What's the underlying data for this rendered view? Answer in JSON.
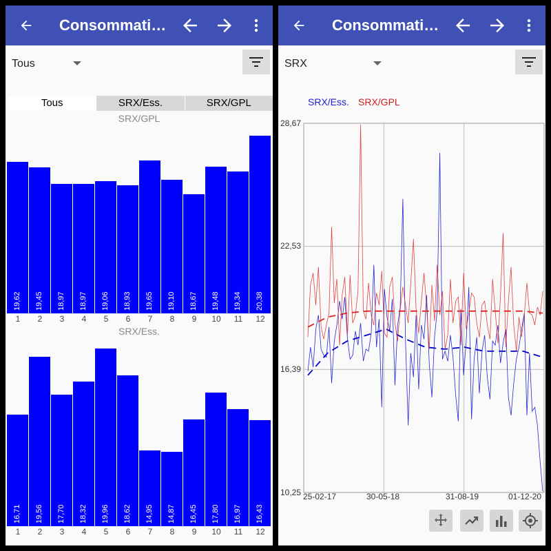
{
  "left": {
    "title": "Consommatio…",
    "select_value": "Tous",
    "tabs": [
      "Tous",
      "SRX/Ess.",
      "SRX/GPL"
    ],
    "active_tab": 0,
    "charts": [
      {
        "title": "SRX/GPL",
        "categories": [
          "1",
          "2",
          "3",
          "4",
          "5",
          "6",
          "7",
          "8",
          "9",
          "10",
          "11",
          "12"
        ],
        "values": [
          19.62,
          19.45,
          18.97,
          18.97,
          19.06,
          18.93,
          19.65,
          19.1,
          18.67,
          19.48,
          19.34,
          20.38
        ],
        "labels": [
          "19,62",
          "19,45",
          "18,97",
          "18,97",
          "19,06",
          "18,93",
          "19,65",
          "19,10",
          "18,67",
          "19,48",
          "19,34",
          "20,38"
        ]
      },
      {
        "title": "SRX/Ess.",
        "categories": [
          "1",
          "2",
          "3",
          "4",
          "5",
          "6",
          "7",
          "8",
          "9",
          "10",
          "11",
          "12"
        ],
        "values": [
          16.71,
          19.56,
          17.7,
          18.32,
          19.96,
          18.62,
          14.95,
          14.87,
          16.45,
          17.8,
          16.97,
          16.43
        ],
        "labels": [
          "16,71",
          "19,56",
          "17,70",
          "18,32",
          "19,96",
          "18,62",
          "14,95",
          "14,87",
          "16,45",
          "17,80",
          "16,97",
          "16,43"
        ]
      }
    ]
  },
  "right": {
    "title": "Consommation",
    "select_value": "SRX",
    "tools": [
      "move-icon",
      "trend-icon",
      "bar-chart-icon",
      "target-icon"
    ]
  },
  "chart_data": [
    {
      "type": "bar",
      "title": "SRX/GPL",
      "categories": [
        "1",
        "2",
        "3",
        "4",
        "5",
        "6",
        "7",
        "8",
        "9",
        "10",
        "11",
        "12"
      ],
      "values": [
        19.62,
        19.45,
        18.97,
        18.97,
        19.06,
        18.93,
        19.65,
        19.1,
        18.67,
        19.48,
        19.34,
        20.38
      ],
      "color": "#0000ff"
    },
    {
      "type": "bar",
      "title": "SRX/Ess.",
      "categories": [
        "1",
        "2",
        "3",
        "4",
        "5",
        "6",
        "7",
        "8",
        "9",
        "10",
        "11",
        "12"
      ],
      "values": [
        16.71,
        19.56,
        17.7,
        18.32,
        19.96,
        18.62,
        14.95,
        14.87,
        16.45,
        17.8,
        16.97,
        16.43
      ],
      "color": "#0000ff"
    },
    {
      "type": "line",
      "ylim": [
        10.25,
        28.67
      ],
      "yticks": [
        "10,25",
        "16,39",
        "22,53",
        "28,67"
      ],
      "xticks": [
        "25-02-17",
        "30-05-18",
        "31-08-19",
        "01-12-20"
      ],
      "grid": true,
      "legend_position": "top-left",
      "series": [
        {
          "name": "SRX/Ess.",
          "color": "#0000cc",
          "values": [
            16.3,
            17.5,
            16.5,
            18.4,
            19.1,
            17.4,
            17.1,
            17.0,
            18.5,
            15.7,
            17.8,
            18.6,
            19.8,
            18.9,
            20.0,
            17.9,
            16.9,
            17.1,
            18.3,
            17.6,
            18.7,
            16.8,
            17.4,
            17.3,
            18.2,
            21.6,
            17.5,
            18.9,
            14.5,
            20.4,
            19.0,
            18.3,
            19.9,
            15.6,
            18.6,
            19.5,
            24.9,
            17.8,
            13.6,
            17.2,
            16.0,
            19.1,
            15.4,
            18.6,
            17.9,
            20.1,
            16.7,
            15.0,
            18.0,
            19.3,
            27.2,
            16.9,
            17.3,
            16.8,
            18.1,
            17.0,
            15.1,
            13.8,
            19.4,
            16.1,
            17.8,
            20.5,
            13.9,
            16.9,
            18.0,
            15.2,
            17.3,
            18.1,
            16.0,
            14.9,
            17.8,
            17.6,
            18.6,
            16.7,
            17.7,
            18.4,
            15.0,
            14.1,
            15.7,
            16.9,
            17.5,
            18.4,
            19.2,
            14.1,
            17.2,
            14.3,
            14.5,
            13.6,
            11.8,
            10.3
          ],
          "trend": [
            16.1,
            17.2,
            17.8,
            18.1,
            18.4,
            17.9,
            17.5,
            17.4,
            17.5,
            17.3,
            17.3,
            17.3,
            17.0
          ]
        },
        {
          "name": "SRX/GPL",
          "color": "#dd2222",
          "values": [
            18.0,
            20.6,
            21.2,
            19.6,
            21.5,
            18.5,
            17.9,
            18.6,
            19.2,
            23.5,
            19.7,
            20.9,
            17.6,
            20.1,
            21.0,
            18.1,
            21.1,
            18.7,
            19.1,
            20.3,
            28.6,
            19.3,
            18.9,
            20.7,
            19.1,
            18.6,
            20.2,
            19.6,
            21.3,
            18.2,
            18.0,
            20.5,
            21.0,
            18.7,
            17.8,
            19.4,
            20.5,
            19.6,
            18.7,
            20.7,
            22.9,
            19.4,
            18.2,
            19.8,
            21.2,
            19.5,
            17.4,
            20.6,
            18.8,
            21.6,
            19.1,
            20.3,
            17.4,
            18.1,
            20.9,
            18.7,
            19.8,
            20.0,
            17.6,
            21.2,
            18.4,
            19.2,
            20.2,
            20.0,
            18.7,
            18.0,
            19.6,
            19.8,
            18.6,
            17.9,
            20.9,
            19.3,
            17.7,
            20.1,
            23.2,
            17.5,
            19.8,
            21.5,
            18.6,
            17.3,
            19.0,
            18.0,
            19.1,
            20.7,
            19.2,
            19.1,
            18.6,
            19.5,
            19.1,
            20.3
          ],
          "trend": [
            18.5,
            19.0,
            19.2,
            19.3,
            19.3,
            19.3,
            19.3,
            19.3,
            19.3,
            19.3,
            19.3,
            19.3,
            19.2
          ]
        }
      ]
    }
  ]
}
